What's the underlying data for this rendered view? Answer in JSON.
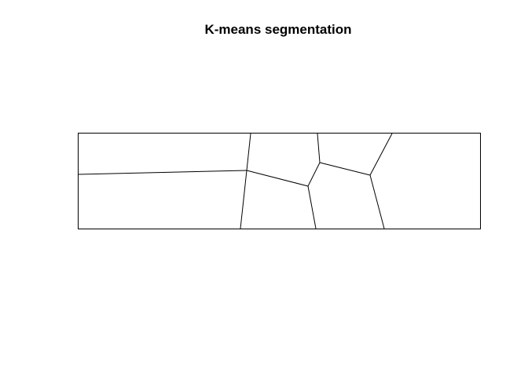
{
  "title": "K-means segmentation",
  "colors": {
    "background": "#ffffff",
    "line": "#000000"
  }
}
